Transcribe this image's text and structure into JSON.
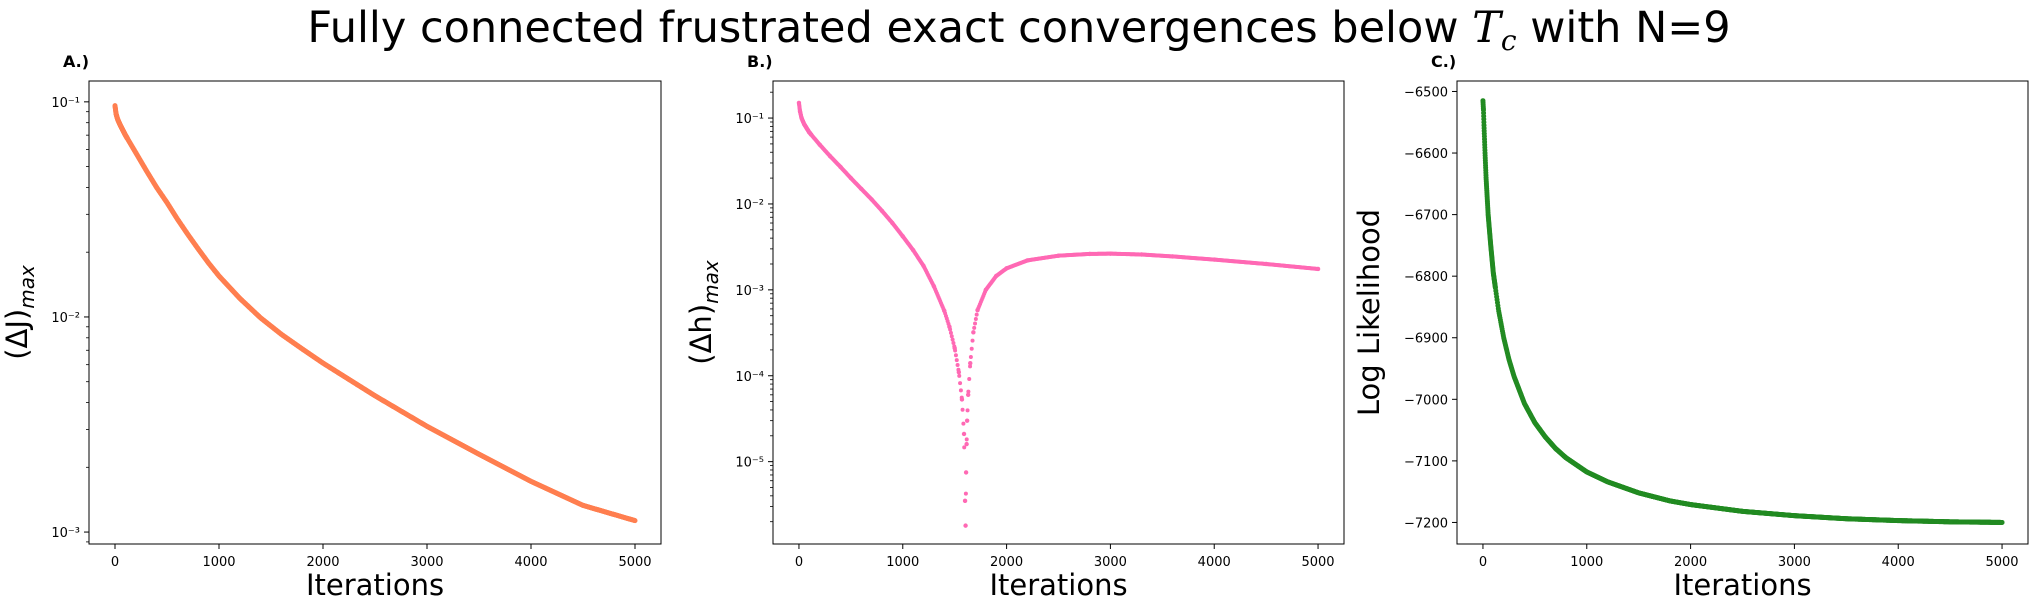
{
  "figure_title": {
    "prefix": "Fully connected frustrated exact convergences below ",
    "symbol": "T",
    "subscript": "c",
    "suffix": " with N=9"
  },
  "chart_data": [
    {
      "type": "scatter",
      "panel_label": "A.)",
      "xlabel": "Iterations",
      "ylabel": "(ΔJ)",
      "ylabel_subscript": "max",
      "yscale": "log",
      "color": "#ff7f50",
      "xlim": [
        -250,
        5250
      ],
      "ylim": [
        0.00088,
        0.125
      ],
      "xticks": [
        0,
        1000,
        2000,
        3000,
        4000,
        5000
      ],
      "xtick_labels": [
        "0",
        "1000",
        "2000",
        "3000",
        "4000",
        "5000"
      ],
      "yticks": [
        0.001,
        0.01,
        0.1
      ],
      "ytick_labels": [
        "10⁻³",
        "10⁻²",
        "10⁻¹"
      ],
      "x": [
        0,
        10,
        25,
        50,
        100,
        200,
        300,
        400,
        500,
        600,
        700,
        800,
        900,
        1000,
        1200,
        1400,
        1600,
        1800,
        2000,
        2500,
        3000,
        3500,
        4000,
        4500,
        5000
      ],
      "y": [
        0.096,
        0.088,
        0.083,
        0.078,
        0.07,
        0.058,
        0.048,
        0.04,
        0.034,
        0.0285,
        0.0242,
        0.0207,
        0.0178,
        0.0155,
        0.0122,
        0.0099,
        0.0083,
        0.0071,
        0.0061,
        0.0043,
        0.0031,
        0.0023,
        0.00172,
        0.00133,
        0.00113
      ]
    },
    {
      "type": "scatter",
      "panel_label": "B.)",
      "xlabel": "Iterations",
      "ylabel": "(Δh)",
      "ylabel_subscript": "max",
      "yscale": "log",
      "color": "#ff69b4",
      "xlim": [
        -250,
        5250
      ],
      "ylim": [
        1.1e-06,
        0.27
      ],
      "xticks": [
        0,
        1000,
        2000,
        3000,
        4000,
        5000
      ],
      "xtick_labels": [
        "0",
        "1000",
        "2000",
        "3000",
        "4000",
        "5000"
      ],
      "yticks": [
        1e-05,
        0.0001,
        0.001,
        0.01,
        0.1
      ],
      "ytick_labels": [
        "10⁻⁵",
        "10⁻⁴",
        "10⁻³",
        "10⁻²",
        "10⁻¹"
      ],
      "x": [
        0,
        10,
        25,
        50,
        100,
        200,
        300,
        400,
        500,
        600,
        700,
        800,
        900,
        1000,
        1100,
        1200,
        1300,
        1400,
        1450,
        1500,
        1540,
        1570,
        1590,
        1600,
        1605,
        1610,
        1615,
        1620,
        1630,
        1650,
        1680,
        1720,
        1800,
        1900,
        2000,
        2200,
        2500,
        2800,
        3000,
        3300,
        3600,
        4000,
        4500,
        5000
      ],
      "y": [
        0.15,
        0.12,
        0.1,
        0.085,
        0.068,
        0.049,
        0.036,
        0.027,
        0.02,
        0.015,
        0.0113,
        0.0083,
        0.006,
        0.0042,
        0.0029,
        0.0019,
        0.0011,
        0.00057,
        0.00037,
        0.00021,
        0.00011,
        5.3e-05,
        2.1e-05,
        3.5e-06,
        1.8e-06,
        7.5e-06,
        1.6e-05,
        3e-05,
        6e-05,
        0.00014,
        0.00032,
        0.00058,
        0.001,
        0.00145,
        0.00178,
        0.0022,
        0.0025,
        0.00262,
        0.00264,
        0.00258,
        0.00245,
        0.00225,
        0.002,
        0.00175
      ]
    },
    {
      "type": "scatter",
      "panel_label": "C.)",
      "xlabel": "Iterations",
      "ylabel": "Log Likelihood",
      "yscale": "linear",
      "color": "#228b22",
      "xlim": [
        -250,
        5250
      ],
      "ylim": [
        -7235,
        -6483
      ],
      "xticks": [
        0,
        1000,
        2000,
        3000,
        4000,
        5000
      ],
      "xtick_labels": [
        "0",
        "1000",
        "2000",
        "3000",
        "4000",
        "5000"
      ],
      "yticks": [
        -7200,
        -7100,
        -7000,
        -6900,
        -6800,
        -6700,
        -6600,
        -6500
      ],
      "ytick_labels": [
        "−7200",
        "−7100",
        "−7000",
        "−6900",
        "−6800",
        "−6700",
        "−6600",
        "−6500"
      ],
      "x": [
        0,
        5,
        10,
        20,
        30,
        50,
        75,
        100,
        150,
        200,
        250,
        300,
        400,
        500,
        600,
        700,
        800,
        1000,
        1200,
        1500,
        1800,
        2000,
        2500,
        3000,
        3500,
        4000,
        4500,
        5000
      ],
      "y": [
        -6515,
        -6530,
        -6555,
        -6600,
        -6640,
        -6700,
        -6750,
        -6795,
        -6855,
        -6900,
        -6935,
        -6963,
        -7007,
        -7038,
        -7061,
        -7080,
        -7095,
        -7118,
        -7134,
        -7152,
        -7165,
        -7171,
        -7182,
        -7189,
        -7194,
        -7197,
        -7199,
        -7200
      ]
    }
  ]
}
